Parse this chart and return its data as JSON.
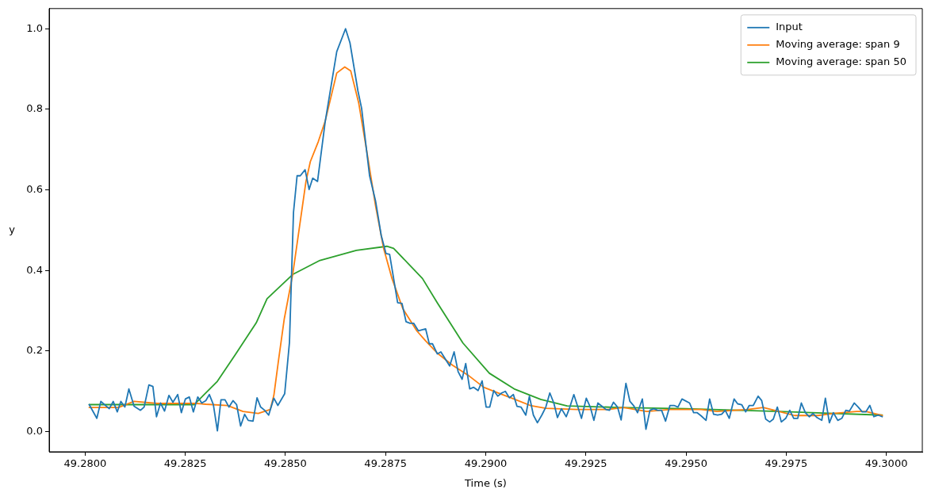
{
  "chart_data": {
    "type": "line",
    "xlabel": "Time (s)",
    "ylabel": "y",
    "legend": "top right",
    "marker": "none",
    "line_style": "solid",
    "xlim": [
      49.2791,
      49.3009
    ],
    "ylim": [
      -0.05,
      1.05
    ],
    "xticks": [
      {
        "value": 49.28,
        "label": "49.2800"
      },
      {
        "value": 49.2825,
        "label": "49.2825"
      },
      {
        "value": 49.285,
        "label": "49.2850"
      },
      {
        "value": 49.2875,
        "label": "49.2875"
      },
      {
        "value": 49.29,
        "label": "49.2900"
      },
      {
        "value": 49.2925,
        "label": "49.2925"
      },
      {
        "value": 49.295,
        "label": "49.2950"
      },
      {
        "value": 49.2975,
        "label": "49.2975"
      },
      {
        "value": 49.3,
        "label": "49.3000"
      }
    ],
    "yticks": [
      {
        "value": 0,
        "label": "0.0"
      },
      {
        "value": 0.2,
        "label": "0.2"
      },
      {
        "value": 0.4,
        "label": "0.4"
      },
      {
        "value": 0.6,
        "label": "0.6"
      },
      {
        "value": 0.8,
        "label": "0.8"
      },
      {
        "value": 1,
        "label": "1.0"
      }
    ],
    "series": [
      {
        "name": "Input",
        "color": "#1f77b4",
        "x": [
          49.2801,
          49.28029,
          49.28039,
          49.2806,
          49.2807,
          49.2808,
          49.28089,
          49.28099,
          49.28109,
          49.28122,
          49.28138,
          49.28147,
          49.28159,
          49.28169,
          49.28178,
          49.28188,
          49.28198,
          49.28209,
          49.28219,
          49.28231,
          49.2824,
          49.2825,
          49.2826,
          49.2827,
          49.28281,
          49.28291,
          49.28301,
          49.2831,
          49.2832,
          49.2833,
          49.28339,
          49.28349,
          49.28359,
          49.28369,
          49.28378,
          49.28388,
          49.28398,
          49.28407,
          49.28419,
          49.28429,
          49.28438,
          49.28448,
          49.28458,
          49.28471,
          49.28481,
          49.28498,
          49.2851,
          49.2852,
          49.28529,
          49.28537,
          49.28549,
          49.28559,
          49.28568,
          49.2858,
          49.28599,
          49.28628,
          49.2865,
          49.28661,
          49.28681,
          49.2869,
          49.2871,
          49.28725,
          49.28739,
          49.28751,
          49.2876,
          49.2878,
          49.28791,
          49.28801,
          49.28811,
          49.2882,
          49.28832,
          49.2885,
          49.28859,
          49.28867,
          49.28879,
          49.28888,
          49.2891,
          49.28921,
          49.28931,
          49.28941,
          49.2895,
          49.2896,
          49.2897,
          49.28981,
          49.28991,
          49.29001,
          49.2901,
          49.2902,
          49.2903,
          49.2904,
          49.29049,
          49.29059,
          49.29069,
          49.29078,
          49.29088,
          49.291,
          49.29109,
          49.29119,
          49.29129,
          49.2914,
          49.2915,
          49.2916,
          49.2917,
          49.29179,
          49.29189,
          49.29201,
          49.2921,
          49.2922,
          49.2923,
          49.29239,
          49.29251,
          49.29261,
          49.2927,
          49.2928,
          49.2929,
          49.293,
          49.29309,
          49.29319,
          49.29329,
          49.29338,
          49.2935,
          49.2936,
          49.29369,
          49.29379,
          49.29391,
          49.294,
          49.2941,
          49.2942,
          49.29429,
          49.29439,
          49.29449,
          49.2946,
          49.2947,
          49.2948,
          49.2949,
          49.29509,
          49.29519,
          49.29528,
          49.29538,
          49.2955,
          49.29559,
          49.29569,
          49.29579,
          49.29589,
          49.29598,
          49.29608,
          49.2962,
          49.29629,
          49.29639,
          49.29649,
          49.29658,
          49.29668,
          49.2968,
          49.29689,
          49.29699,
          49.29709,
          49.29718,
          49.29728,
          49.29738,
          49.29749,
          49.29759,
          49.29769,
          49.29779,
          49.29788,
          49.29798,
          49.29808,
          49.29817,
          49.29827,
          49.29839,
          49.29848,
          49.29858,
          49.29868,
          49.29879,
          49.29889,
          49.29899,
          49.29908,
          49.2992,
          49.2993,
          49.2994,
          49.29949,
          49.29959,
          49.29969,
          49.2998,
          49.2999
        ],
        "values": [
          0.067,
          0.033,
          0.075,
          0.057,
          0.075,
          0.049,
          0.075,
          0.061,
          0.106,
          0.063,
          0.053,
          0.061,
          0.116,
          0.112,
          0.037,
          0.071,
          0.051,
          0.09,
          0.073,
          0.092,
          0.047,
          0.081,
          0.086,
          0.049,
          0.086,
          0.071,
          0.077,
          0.092,
          0.067,
          0.002,
          0.079,
          0.079,
          0.061,
          0.077,
          0.067,
          0.014,
          0.043,
          0.028,
          0.026,
          0.084,
          0.061,
          0.053,
          0.041,
          0.083,
          0.065,
          0.094,
          0.222,
          0.544,
          0.635,
          0.635,
          0.65,
          0.601,
          0.629,
          0.621,
          0.768,
          0.943,
          1.0,
          0.965,
          0.845,
          0.803,
          0.635,
          0.572,
          0.487,
          0.442,
          0.44,
          0.32,
          0.318,
          0.273,
          0.269,
          0.269,
          0.25,
          0.255,
          0.218,
          0.218,
          0.193,
          0.198,
          0.163,
          0.198,
          0.149,
          0.13,
          0.169,
          0.106,
          0.11,
          0.102,
          0.126,
          0.061,
          0.061,
          0.102,
          0.088,
          0.096,
          0.1,
          0.084,
          0.092,
          0.063,
          0.061,
          0.041,
          0.088,
          0.041,
          0.022,
          0.041,
          0.061,
          0.096,
          0.071,
          0.035,
          0.057,
          0.037,
          0.061,
          0.092,
          0.061,
          0.033,
          0.083,
          0.061,
          0.028,
          0.071,
          0.063,
          0.055,
          0.053,
          0.073,
          0.061,
          0.029,
          0.12,
          0.075,
          0.065,
          0.047,
          0.081,
          0.006,
          0.053,
          0.057,
          0.053,
          0.053,
          0.026,
          0.065,
          0.065,
          0.061,
          0.081,
          0.071,
          0.047,
          0.047,
          0.039,
          0.028,
          0.081,
          0.043,
          0.041,
          0.043,
          0.053,
          0.033,
          0.081,
          0.069,
          0.067,
          0.049,
          0.065,
          0.065,
          0.088,
          0.077,
          0.031,
          0.024,
          0.031,
          0.061,
          0.024,
          0.033,
          0.053,
          0.033,
          0.033,
          0.071,
          0.047,
          0.037,
          0.045,
          0.035,
          0.028,
          0.083,
          0.022,
          0.047,
          0.028,
          0.033,
          0.053,
          0.051,
          0.071,
          0.061,
          0.049,
          0.049,
          0.065,
          0.037,
          0.041,
          0.037
        ]
      },
      {
        "name": "Moving average: span 9",
        "color": "#ff7f0e",
        "x": [
          49.2801,
          49.28083,
          49.28122,
          49.2818,
          49.28277,
          49.28301,
          49.28355,
          49.28394,
          49.28432,
          49.28462,
          49.28471,
          49.28483,
          49.28497,
          49.28518,
          49.28551,
          49.28562,
          49.28582,
          49.28599,
          49.28628,
          49.28648,
          49.28663,
          49.28683,
          49.28704,
          49.28725,
          49.28745,
          49.28766,
          49.28793,
          49.28828,
          49.2885,
          49.28879,
          49.28917,
          49.28956,
          49.28995,
          49.29034,
          49.29073,
          49.29111,
          49.2915,
          49.29228,
          49.29305,
          49.29344,
          49.29402,
          49.2946,
          49.29538,
          49.29577,
          49.29654,
          49.29693,
          49.29732,
          49.29771,
          49.29829,
          49.29868,
          49.29926,
          49.29949,
          49.2999
        ],
        "values": [
          0.06,
          0.06,
          0.075,
          0.07,
          0.07,
          0.068,
          0.065,
          0.05,
          0.045,
          0.055,
          0.09,
          0.18,
          0.28,
          0.39,
          0.62,
          0.67,
          0.72,
          0.77,
          0.89,
          0.905,
          0.895,
          0.815,
          0.69,
          0.56,
          0.455,
          0.38,
          0.305,
          0.25,
          0.225,
          0.195,
          0.165,
          0.14,
          0.11,
          0.095,
          0.08,
          0.065,
          0.058,
          0.055,
          0.055,
          0.06,
          0.05,
          0.055,
          0.055,
          0.05,
          0.055,
          0.06,
          0.05,
          0.04,
          0.04,
          0.045,
          0.05,
          0.05,
          0.04
        ]
      },
      {
        "name": "Moving average: span 50",
        "color": "#2ca02c",
        "x": [
          49.2801,
          49.28142,
          49.28272,
          49.2833,
          49.28374,
          49.28427,
          49.28454,
          49.28518,
          49.28586,
          49.28677,
          49.28753,
          49.2877,
          49.28842,
          49.28879,
          49.28943,
          49.29009,
          49.29073,
          49.29137,
          49.29203,
          49.29331,
          49.29499,
          49.29732,
          49.2999
        ],
        "values": [
          0.067,
          0.067,
          0.067,
          0.125,
          0.19,
          0.27,
          0.33,
          0.39,
          0.425,
          0.45,
          0.46,
          0.455,
          0.38,
          0.32,
          0.22,
          0.145,
          0.105,
          0.08,
          0.064,
          0.06,
          0.057,
          0.05,
          0.041
        ]
      }
    ]
  }
}
